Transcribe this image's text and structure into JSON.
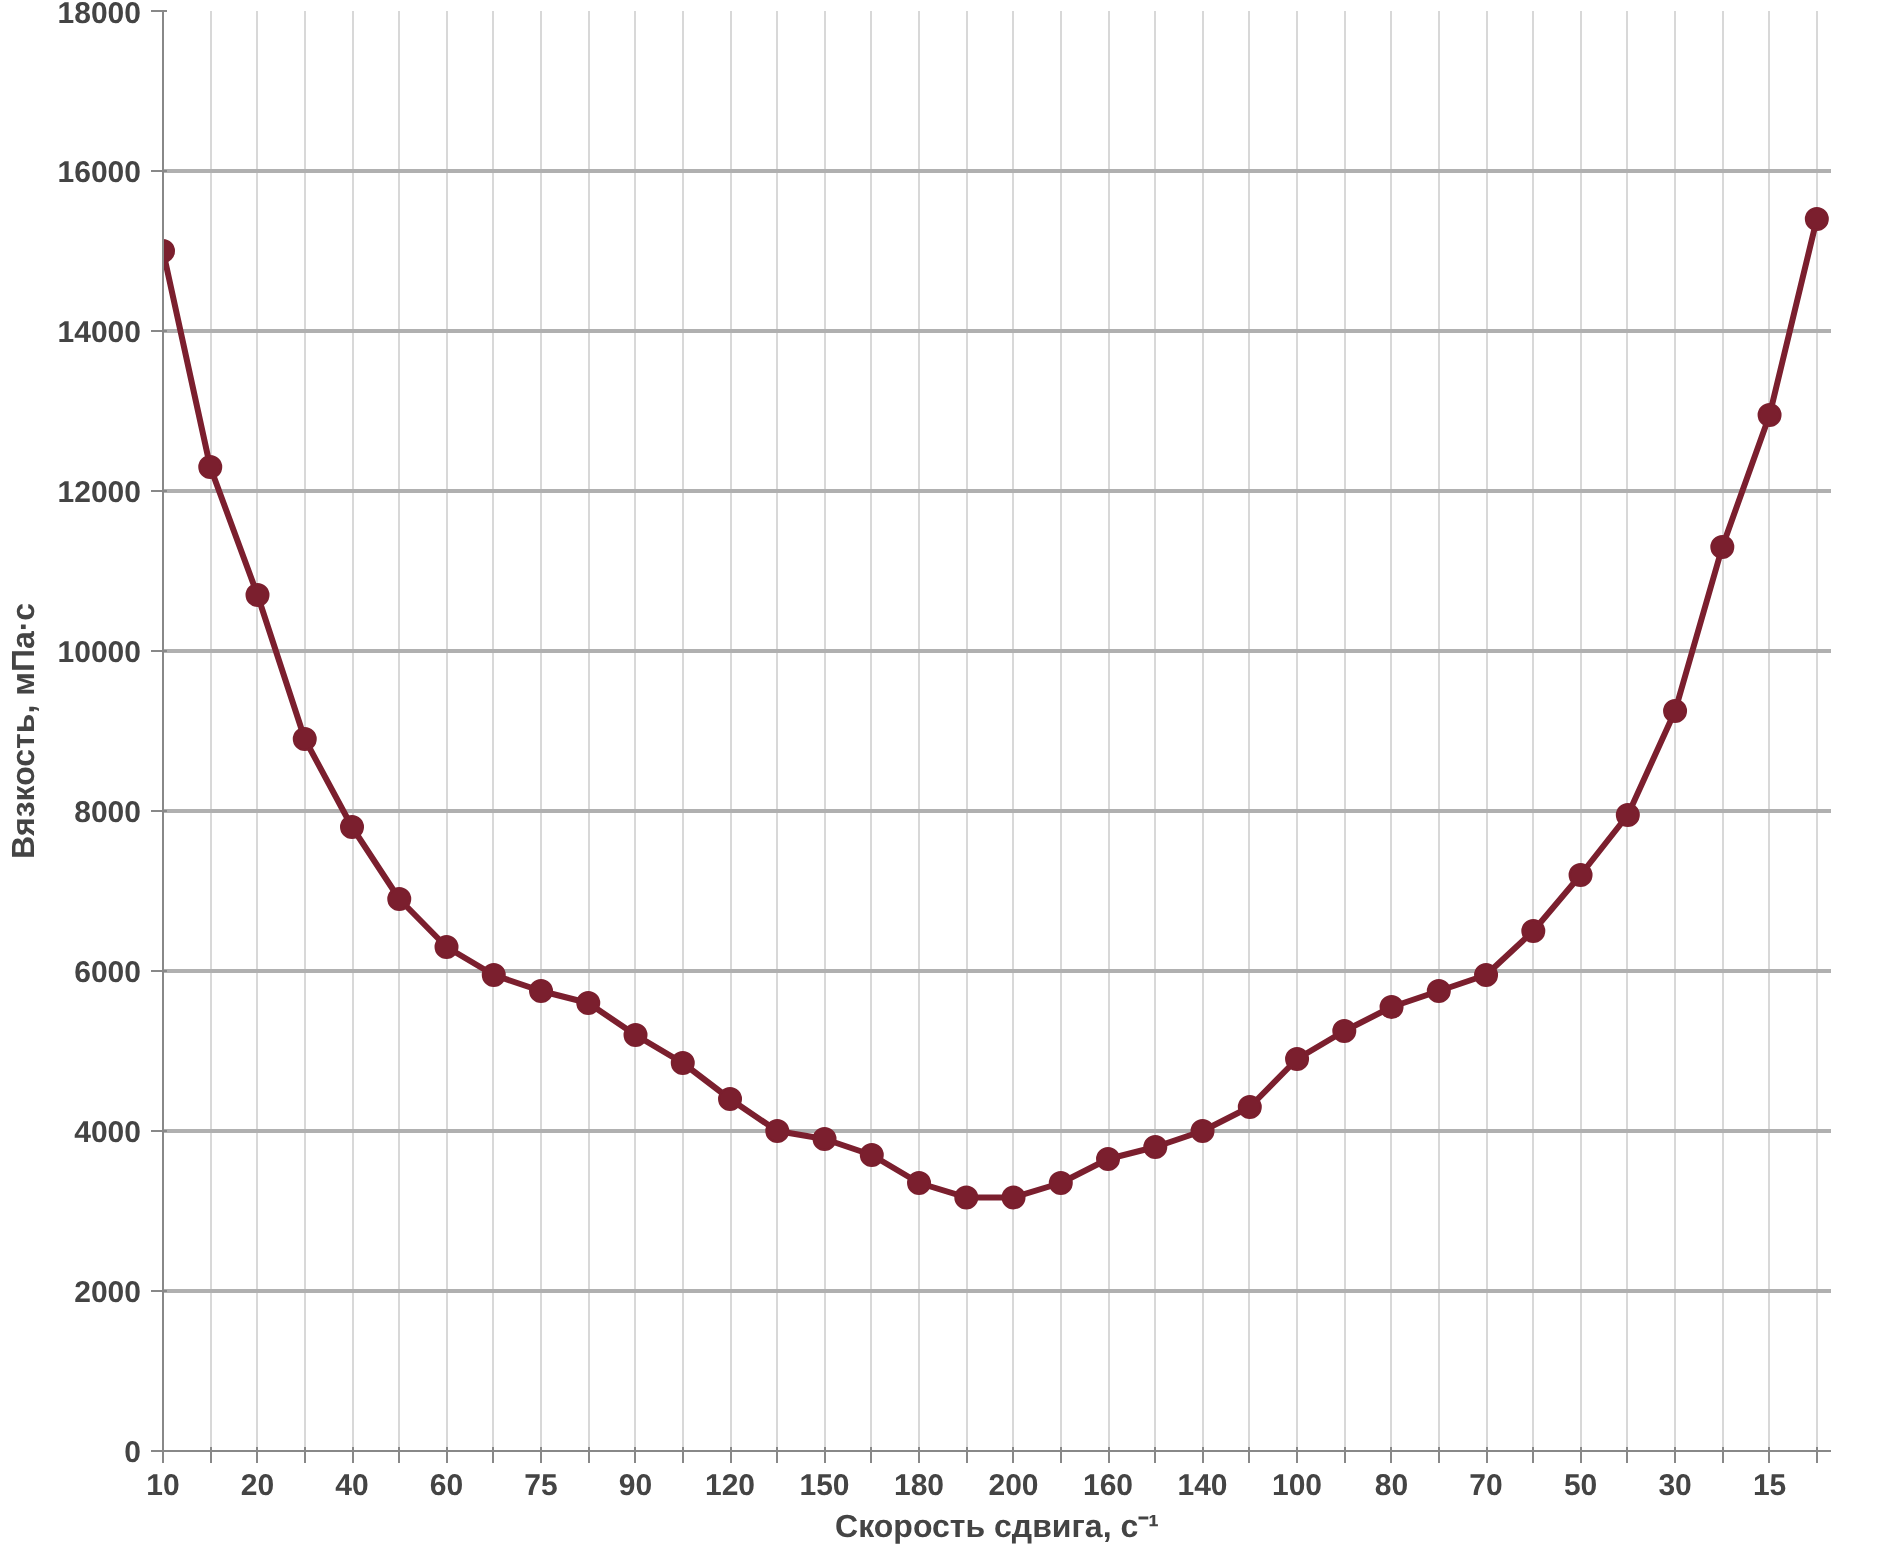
{
  "chart_data": {
    "type": "line",
    "xlabel": "Скорость сдвига, с⁻¹",
    "ylabel": "Вязкость, мПа·с",
    "categories": [
      "10",
      null,
      "20",
      null,
      "40",
      null,
      "60",
      null,
      "75",
      null,
      "90",
      null,
      "120",
      null,
      "150",
      null,
      "180",
      null,
      "200",
      null,
      "160",
      null,
      "140",
      null,
      "100",
      null,
      "80",
      null,
      "70",
      null,
      "50",
      null,
      "30",
      null,
      "15",
      null
    ],
    "series": [
      {
        "color": "#7b1f2e",
        "values": [
          15000,
          12300,
          10700,
          8900,
          7800,
          6900,
          6300,
          5950,
          5750,
          5600,
          5200,
          4850,
          4400,
          4000,
          3900,
          3700,
          3350,
          3170,
          3170,
          3350,
          3650,
          3800,
          4000,
          4300,
          4900,
          5250,
          5550,
          5750,
          5950,
          6500,
          7200,
          7950,
          9250,
          11300,
          12950,
          15400
        ]
      }
    ],
    "ylim": [
      0,
      18000
    ],
    "yticks": [
      0,
      2000,
      4000,
      6000,
      8000,
      10000,
      12000,
      14000,
      16000,
      18000
    ],
    "grid": true,
    "marker": "circle",
    "line_style": "solid"
  }
}
